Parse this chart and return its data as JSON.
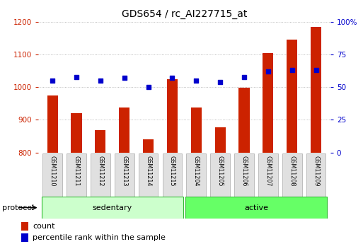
{
  "title": "GDS654 / rc_AI227715_at",
  "samples": [
    "GSM11210",
    "GSM11211",
    "GSM11212",
    "GSM11213",
    "GSM11214",
    "GSM11215",
    "GSM11204",
    "GSM11205",
    "GSM11206",
    "GSM11207",
    "GSM11208",
    "GSM11209"
  ],
  "counts": [
    975,
    920,
    868,
    938,
    840,
    1025,
    938,
    878,
    998,
    1105,
    1145,
    1185
  ],
  "percentiles": [
    55,
    58,
    55,
    57,
    50,
    57,
    55,
    54,
    58,
    62,
    63,
    63
  ],
  "groups": [
    {
      "label": "sedentary",
      "start": 0,
      "end": 6,
      "color": "#ccffcc"
    },
    {
      "label": "active",
      "start": 6,
      "end": 12,
      "color": "#66ff66"
    }
  ],
  "group_label": "protocol",
  "ylim_left": [
    800,
    1200
  ],
  "ylim_right": [
    0,
    100
  ],
  "yticks_left": [
    800,
    900,
    1000,
    1100,
    1200
  ],
  "yticks_right": [
    0,
    25,
    50,
    75,
    100
  ],
  "yticklabels_right": [
    "0",
    "25",
    "50",
    "75",
    "100%"
  ],
  "bar_color": "#cc2200",
  "dot_color": "#0000cc",
  "bg_color": "#ffffff",
  "grid_color": "#aaaaaa",
  "bar_width": 0.45,
  "legend_items": [
    {
      "label": "count",
      "color": "#cc2200"
    },
    {
      "label": "percentile rank within the sample",
      "color": "#0000cc"
    }
  ]
}
